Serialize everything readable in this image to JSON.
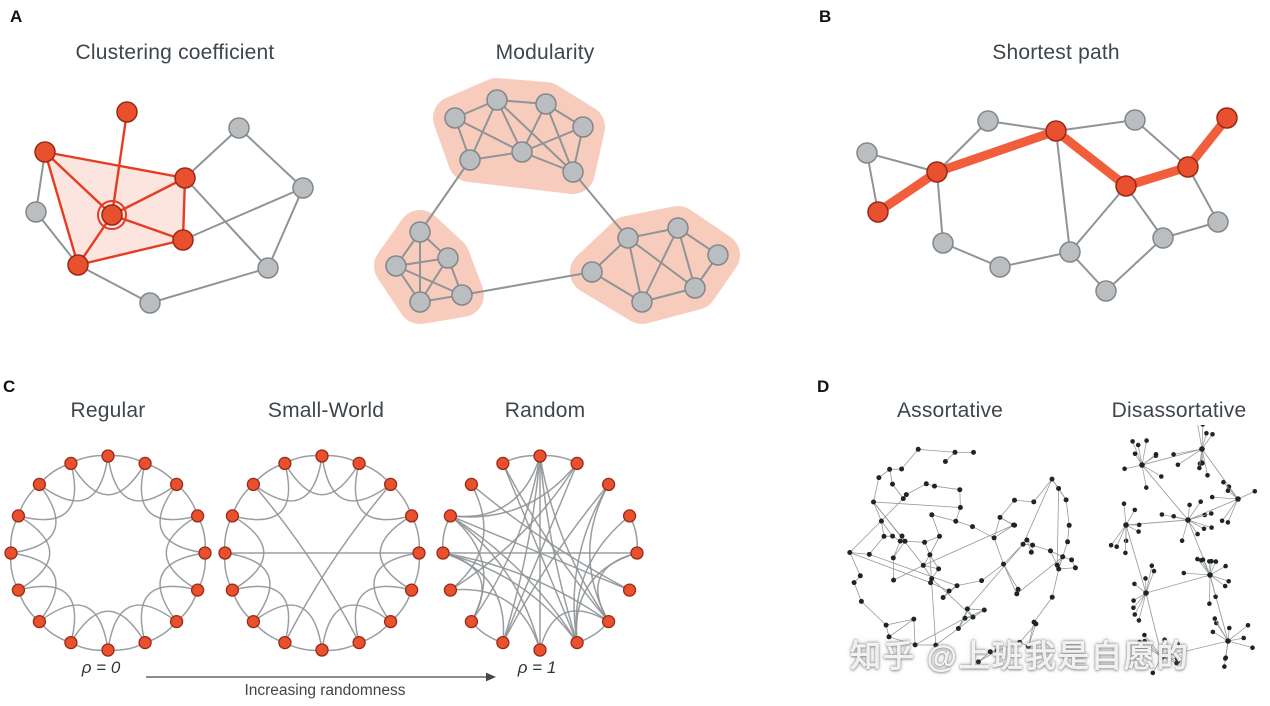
{
  "panels": {
    "a": {
      "letter": "A",
      "clustering_title": "Clustering coefficient",
      "modularity_title": "Modularity"
    },
    "b": {
      "letter": "B",
      "title": "Shortest path"
    },
    "c": {
      "letter": "C",
      "regular_title": "Regular",
      "small_world_title": "Small-World",
      "random_title": "Random",
      "rho_start": "ρ = 0",
      "rho_end": "ρ = 1",
      "arrow_label": "Increasing randomness"
    },
    "d": {
      "letter": "D",
      "assortative_title": "Assortative",
      "disassortative_title": "Disassortative"
    }
  },
  "watermark": {
    "text": "知乎 @上班我是自愿的"
  },
  "colors": {
    "node_red": "#e9502e",
    "node_red_stroke": "#992916",
    "node_gray": "#babec0",
    "node_gray_stroke": "#83878a",
    "edge_gray": "#8f9497",
    "edge_red": "#e63c22",
    "cluster_fill": "rgba(235,85,55,0.16)",
    "community_blob": "#f8ccbd",
    "path_highlight": "#f15e3c",
    "dot_black": "#212425",
    "text": "#3e454b"
  }
}
